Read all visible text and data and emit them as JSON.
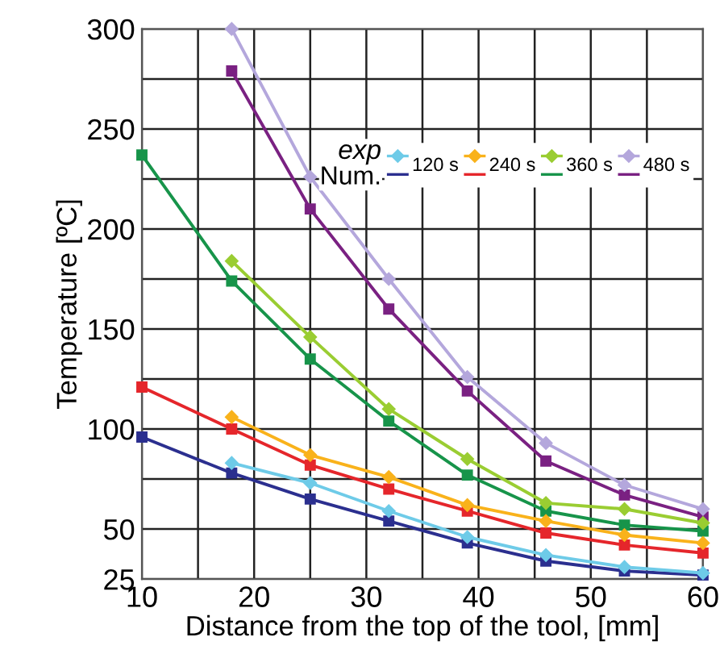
{
  "chart_data": {
    "type": "line",
    "xlabel": "Distance from the top of the tool, [mm]",
    "ylabel": "Temperature [ºC]",
    "x": [
      10,
      18,
      25,
      32,
      39,
      46,
      53,
      60
    ],
    "xlim": [
      10,
      60
    ],
    "xticks": [
      10,
      {
        "value": 15,
        "label": null
      },
      20,
      {
        "value": 25,
        "label": null
      },
      30,
      {
        "value": 35,
        "label": null
      },
      40,
      {
        "value": 45,
        "label": null
      },
      50,
      {
        "value": 55,
        "label": null
      },
      60
    ],
    "ylim": [
      25,
      300
    ],
    "yticks": [
      25,
      50,
      {
        "value": 75,
        "label": null
      },
      100,
      {
        "value": 125,
        "label": null
      },
      150,
      {
        "value": 175,
        "label": null
      },
      200,
      {
        "value": 225,
        "label": null
      },
      250,
      {
        "value": 275,
        "label": null
      },
      300
    ],
    "grid": true,
    "legend": "top right",
    "annotations": [
      "exp",
      "Num."
    ],
    "series": [
      {
        "name": "120 s",
        "color": "#6ecbe8",
        "marker": "diamond",
        "values": [
          null,
          83,
          73,
          59,
          46,
          37,
          31,
          28
        ]
      },
      {
        "name": "240 s",
        "color": "#f9b21b",
        "marker": "diamond",
        "values": [
          null,
          106,
          87,
          76,
          62,
          54,
          47,
          43
        ]
      },
      {
        "name": "360 s",
        "color": "#9acd32",
        "marker": "diamond",
        "values": [
          null,
          184,
          146,
          110,
          85,
          63,
          60,
          53
        ]
      },
      {
        "name": "480 s",
        "color": "#b4a7dc",
        "marker": "diamond",
        "values": [
          null,
          300,
          226,
          175,
          126,
          93,
          72,
          60
        ]
      },
      {
        "color": "#2b2f8f",
        "marker": "square",
        "values": [
          96,
          78,
          65,
          54,
          43,
          34,
          29,
          27
        ]
      },
      {
        "color": "#e5262b",
        "marker": "square",
        "values": [
          121,
          100,
          82,
          70,
          59,
          48,
          42,
          38
        ]
      },
      {
        "color": "#17944a",
        "marker": "square",
        "values": [
          237,
          174,
          135,
          104,
          77,
          59,
          52,
          49
        ]
      },
      {
        "color": "#7a2182",
        "marker": "square",
        "values": [
          null,
          279,
          210,
          160,
          119,
          84,
          67,
          56
        ]
      }
    ]
  }
}
